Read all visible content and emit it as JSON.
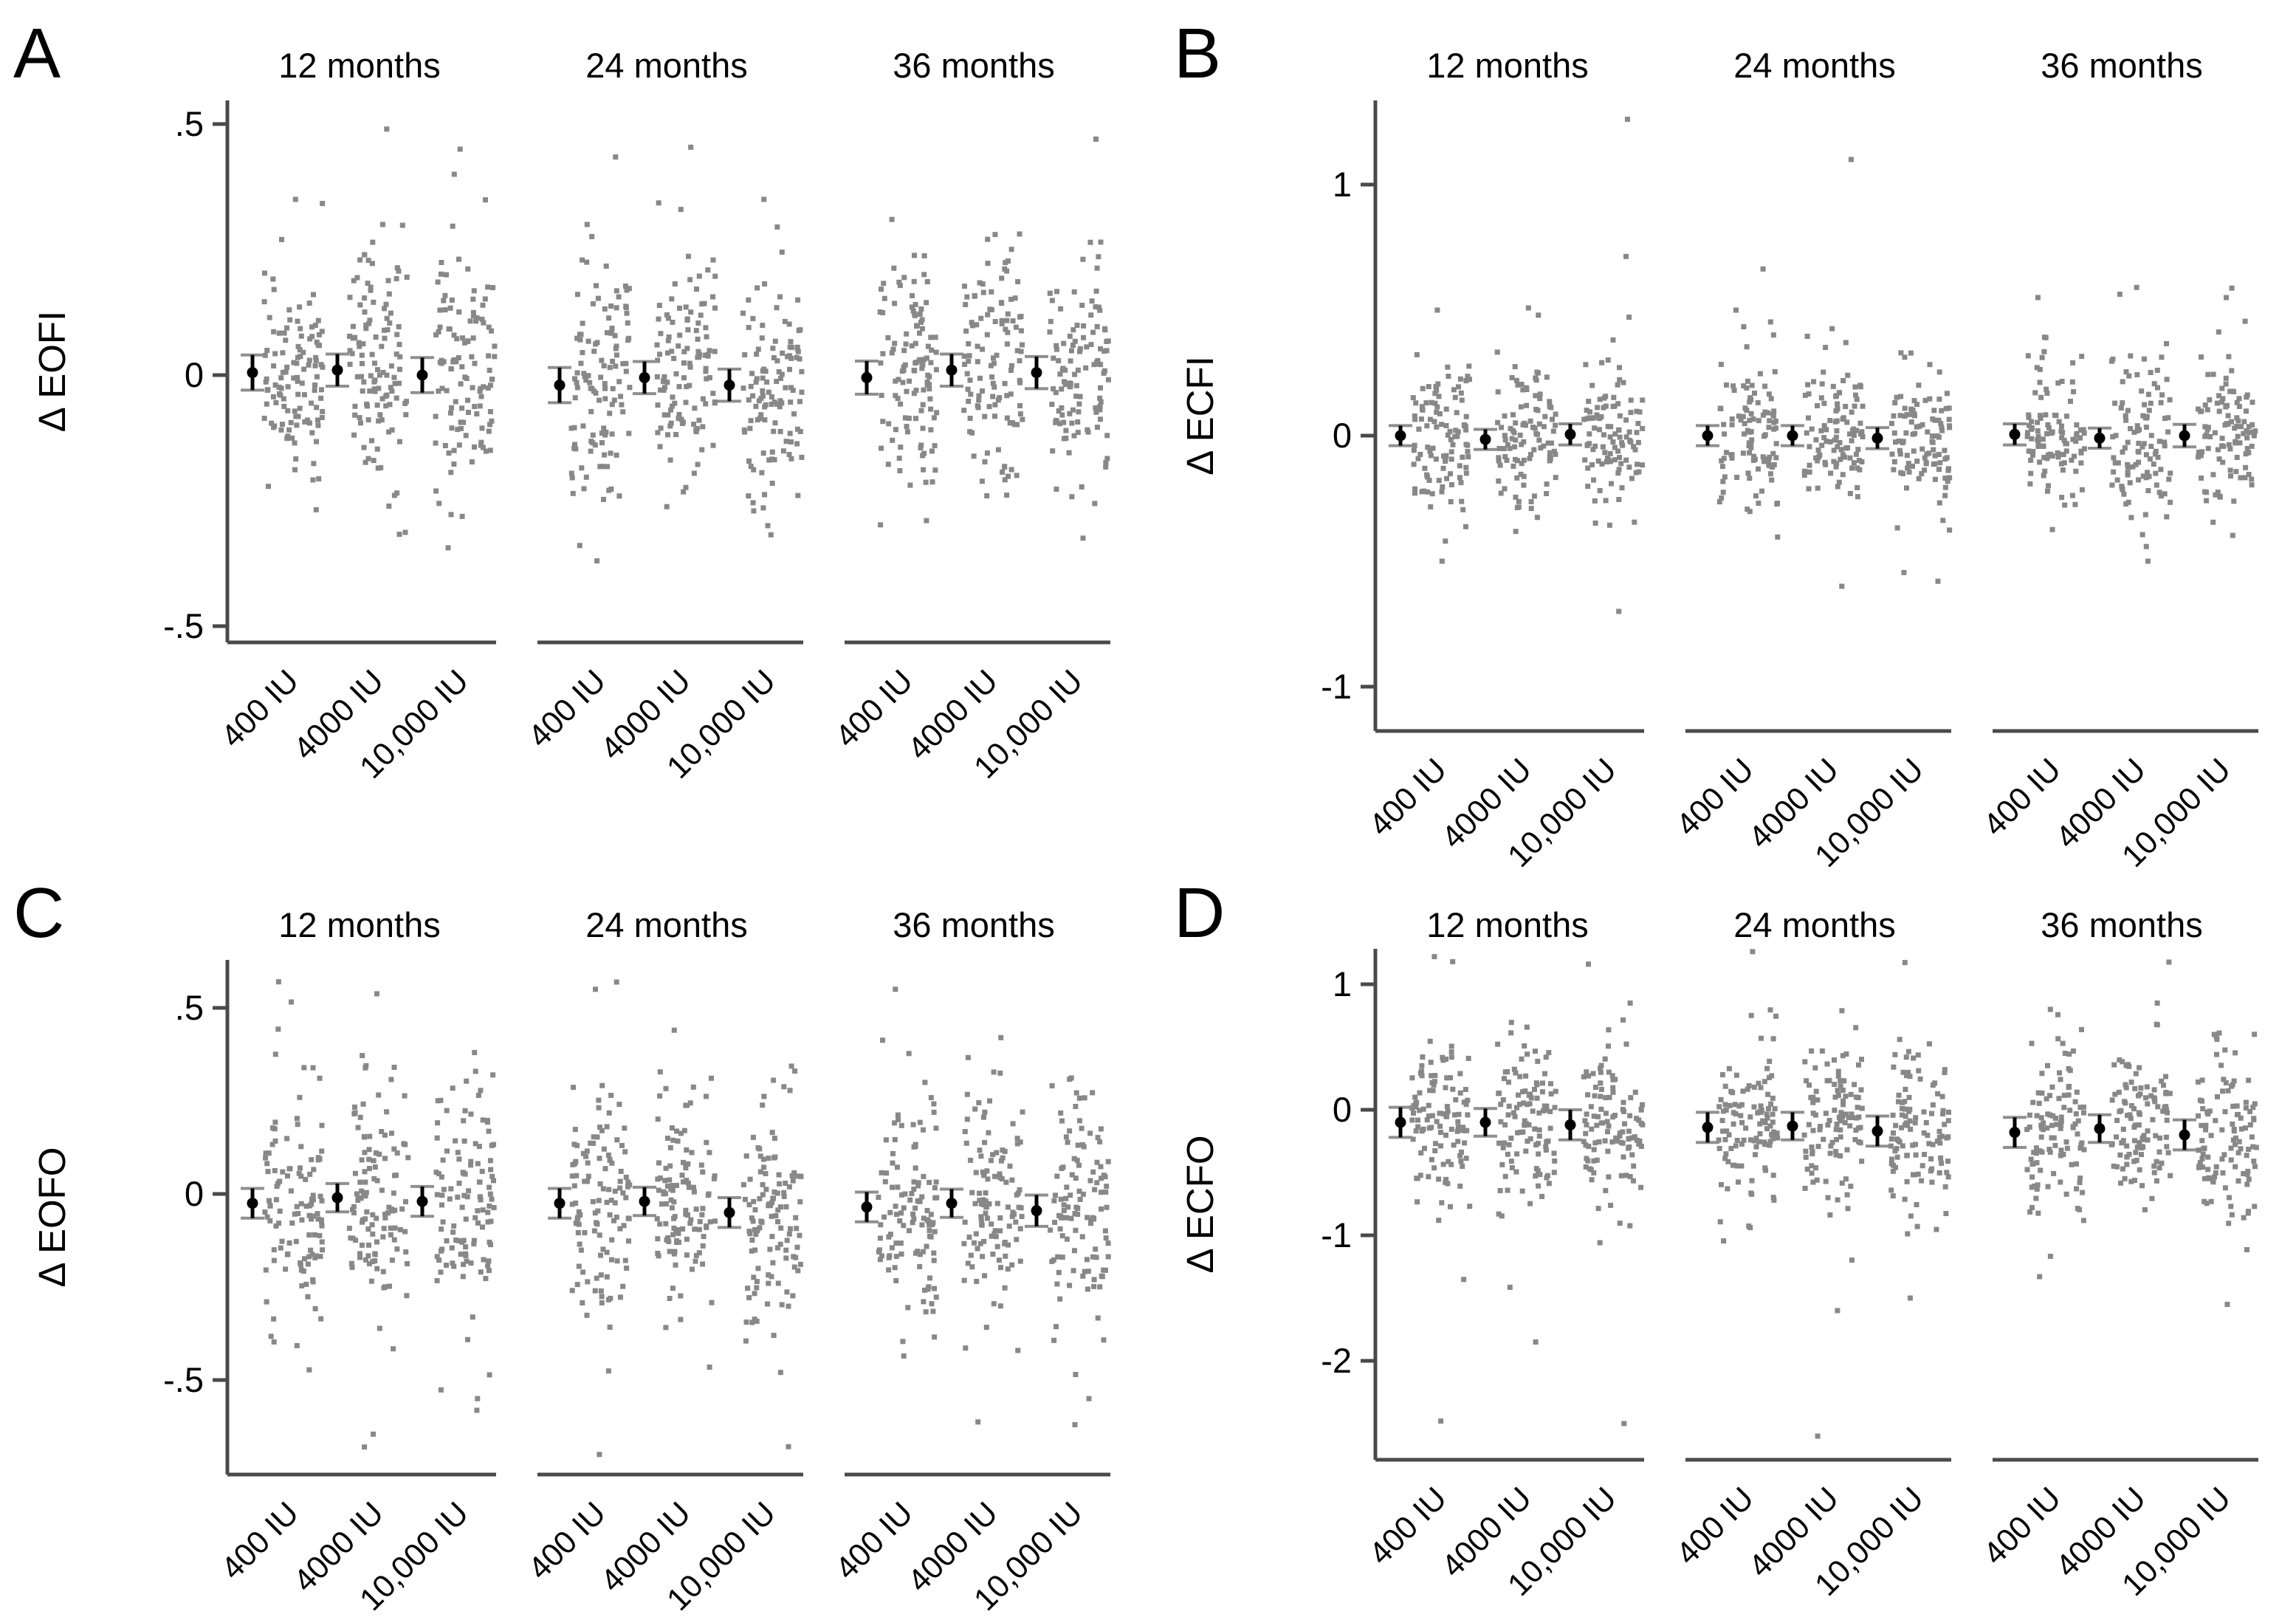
{
  "styles": {
    "background": "#ffffff",
    "text_color": "#000000",
    "axis_color": "#4a4a4a",
    "dot_color": "#7e7e7e",
    "mean_marker_color": "#000000",
    "cap_color": "#8f8f8f"
  },
  "chart_data": {
    "type": "scatter",
    "title": "",
    "layout": "2x2 panels, each with 3 time facets and 3 jittered dose groups with mean and 95% CI markers",
    "legend": "none",
    "grid": "off",
    "dose_labels": [
      "400 IU",
      "4000 IU",
      "10,000 IU"
    ],
    "facet_titles": [
      "12 months",
      "24 months",
      "36 months"
    ],
    "panels": [
      {
        "letter": "A",
        "ylabel": "Δ EOFI",
        "ylim": [
          -0.55,
          0.55
        ],
        "yticks": [
          {
            "value": 0.5,
            "label": ".5"
          },
          {
            "value": 0,
            "label": "0"
          },
          {
            "value": -0.5,
            "label": "-.5"
          }
        ],
        "points_per_group": 115,
        "jitter_sd": 0.11,
        "tail_sd": 0.2,
        "tail_prob": 0.05,
        "value_range": [
          -0.345,
          0.515
        ],
        "facets": [
          {
            "title": "12 months",
            "groups": [
              {
                "dose": "400 IU",
                "mean": 0.005,
                "ci": 0.035,
                "outliers": [
                  0.35,
                  0.27
                ]
              },
              {
                "dose": "4000 IU",
                "mean": 0.01,
                "ci": 0.032,
                "outliers": [
                  0.49,
                  0.3
                ]
              },
              {
                "dose": "10,000 IU",
                "mean": 0.0,
                "ci": 0.035,
                "outliers": [
                  0.45,
                  0.4
                ]
              }
            ]
          },
          {
            "title": "24 months",
            "groups": [
              {
                "dose": "400 IU",
                "mean": -0.02,
                "ci": 0.035,
                "outliers": [
                  0.3,
                  -0.37
                ]
              },
              {
                "dose": "4000 IU",
                "mean": -0.005,
                "ci": 0.032,
                "outliers": [
                  0.33
                ]
              },
              {
                "dose": "10,000 IU",
                "mean": -0.02,
                "ci": 0.032,
                "outliers": [
                  0.35
                ]
              }
            ]
          },
          {
            "title": "36 months",
            "groups": [
              {
                "dose": "400 IU",
                "mean": -0.005,
                "ci": 0.033,
                "outliers": [
                  0.31
                ]
              },
              {
                "dose": "4000 IU",
                "mean": 0.01,
                "ci": 0.032,
                "outliers": [
                  0.28
                ]
              },
              {
                "dose": "10,000 IU",
                "mean": 0.005,
                "ci": 0.032,
                "outliers": [
                  0.47
                ]
              }
            ]
          }
        ]
      },
      {
        "letter": "B",
        "ylabel": "Δ ECFI",
        "ylim": [
          -1.18,
          1.33
        ],
        "yticks": [
          {
            "value": 1,
            "label": "1"
          },
          {
            "value": 0,
            "label": "0"
          },
          {
            "value": -1,
            "label": "-1"
          }
        ],
        "points_per_group": 105,
        "jitter_sd": 0.15,
        "tail_sd": 0.3,
        "tail_prob": 0.07,
        "value_range": [
          -0.78,
          1.28
        ],
        "facets": [
          {
            "title": "12 months",
            "groups": [
              {
                "dose": "400 IU",
                "mean": 0.0,
                "ci": 0.04,
                "outliers": [
                  0.5,
                  -0.5,
                  -0.42
                ]
              },
              {
                "dose": "4000 IU",
                "mean": -0.015,
                "ci": 0.04,
                "outliers": [
                  0.48
                ]
              },
              {
                "dose": "10,000 IU",
                "mean": 0.005,
                "ci": 0.042,
                "outliers": [
                  1.26,
                  -0.7
                ]
              }
            ]
          },
          {
            "title": "24 months",
            "groups": [
              {
                "dose": "400 IU",
                "mean": 0.0,
                "ci": 0.04,
                "outliers": [
                  0.5
                ]
              },
              {
                "dose": "4000 IU",
                "mean": 0.0,
                "ci": 0.04,
                "outliers": [
                  1.1,
                  -0.6
                ]
              },
              {
                "dose": "10,000 IU",
                "mean": -0.01,
                "ci": 0.042,
                "outliers": [
                  -0.58
                ]
              }
            ]
          },
          {
            "title": "36 months",
            "groups": [
              {
                "dose": "400 IU",
                "mean": 0.005,
                "ci": 0.042,
                "outliers": [
                  0.55
                ]
              },
              {
                "dose": "4000 IU",
                "mean": -0.01,
                "ci": 0.04,
                "outliers": [
                  -0.5
                ]
              },
              {
                "dose": "10,000 IU",
                "mean": 0.0,
                "ci": 0.045,
                "outliers": [
                  0.55
                ]
              }
            ]
          }
        ]
      },
      {
        "letter": "C",
        "ylabel": "Δ EOFO",
        "ylim": [
          -0.75,
          0.62
        ],
        "yticks": [
          {
            "value": 0.5,
            "label": ".5"
          },
          {
            "value": 0,
            "label": "0"
          },
          {
            "value": -0.5,
            "label": "-.5"
          }
        ],
        "points_per_group": 115,
        "jitter_sd": 0.155,
        "tail_sd": 0.27,
        "tail_prob": 0.06,
        "value_range": [
          -0.73,
          0.6
        ],
        "facets": [
          {
            "title": "12 months",
            "groups": [
              {
                "dose": "400 IU",
                "mean": -0.025,
                "ci": 0.04,
                "outliers": [
                  0.57
                ]
              },
              {
                "dose": "4000 IU",
                "mean": -0.01,
                "ci": 0.038,
                "outliers": [
                  -0.68
                ]
              },
              {
                "dose": "10,000 IU",
                "mean": -0.02,
                "ci": 0.04,
                "outliers": [
                  0.38,
                  -0.55
                ]
              }
            ]
          },
          {
            "title": "24 months",
            "groups": [
              {
                "dose": "400 IU",
                "mean": -0.025,
                "ci": 0.04,
                "outliers": [
                  0.55,
                  -0.7
                ]
              },
              {
                "dose": "4000 IU",
                "mean": -0.02,
                "ci": 0.038,
                "outliers": [
                  0.44
                ]
              },
              {
                "dose": "10,000 IU",
                "mean": -0.05,
                "ci": 0.04,
                "outliers": [
                  -0.38
                ]
              }
            ]
          },
          {
            "title": "36 months",
            "groups": [
              {
                "dose": "400 IU",
                "mean": -0.035,
                "ci": 0.04,
                "outliers": [
                  0.55
                ]
              },
              {
                "dose": "4000 IU",
                "mean": -0.025,
                "ci": 0.038,
                "outliers": [
                  0.42
                ]
              },
              {
                "dose": "10,000 IU",
                "mean": -0.045,
                "ci": 0.042,
                "outliers": [
                  -0.55
                ]
              }
            ]
          }
        ]
      },
      {
        "letter": "D",
        "ylabel": "Δ ECFO",
        "ylim": [
          -2.79,
          1.28
        ],
        "yticks": [
          {
            "value": 1,
            "label": "1"
          },
          {
            "value": 0,
            "label": "0"
          },
          {
            "value": -1,
            "label": "-1"
          },
          {
            "value": -2,
            "label": "-2"
          }
        ],
        "points_per_group": 110,
        "jitter_sd": 0.32,
        "tail_sd": 0.65,
        "tail_prob": 0.08,
        "value_range": [
          -2.7,
          1.28
        ],
        "facets": [
          {
            "title": "12 months",
            "groups": [
              {
                "dose": "400 IU",
                "mean": -0.1,
                "ci": 0.12,
                "outliers": [
                  1.22,
                  1.18,
                  -2.48
                ]
              },
              {
                "dose": "4000 IU",
                "mean": -0.1,
                "ci": 0.11,
                "outliers": [
                  -1.85
                ]
              },
              {
                "dose": "10,000 IU",
                "mean": -0.12,
                "ci": 0.12,
                "outliers": [
                  0.85,
                  -2.5
                ]
              }
            ]
          },
          {
            "title": "24 months",
            "groups": [
              {
                "dose": "400 IU",
                "mean": -0.14,
                "ci": 0.12,
                "outliers": [
                  1.26
                ]
              },
              {
                "dose": "4000 IU",
                "mean": -0.13,
                "ci": 0.11,
                "outliers": [
                  -2.6,
                  -1.6
                ]
              },
              {
                "dose": "10,000 IU",
                "mean": -0.17,
                "ci": 0.12,
                "outliers": [
                  -1.5
                ]
              }
            ]
          },
          {
            "title": "36 months",
            "groups": [
              {
                "dose": "400 IU",
                "mean": -0.18,
                "ci": 0.12,
                "outliers": [
                  0.8
                ]
              },
              {
                "dose": "4000 IU",
                "mean": -0.15,
                "ci": 0.11,
                "outliers": [
                  0.85
                ]
              },
              {
                "dose": "10,000 IU",
                "mean": -0.2,
                "ci": 0.12,
                "outliers": [
                  -1.55,
                  0.6
                ]
              }
            ]
          }
        ]
      }
    ]
  }
}
